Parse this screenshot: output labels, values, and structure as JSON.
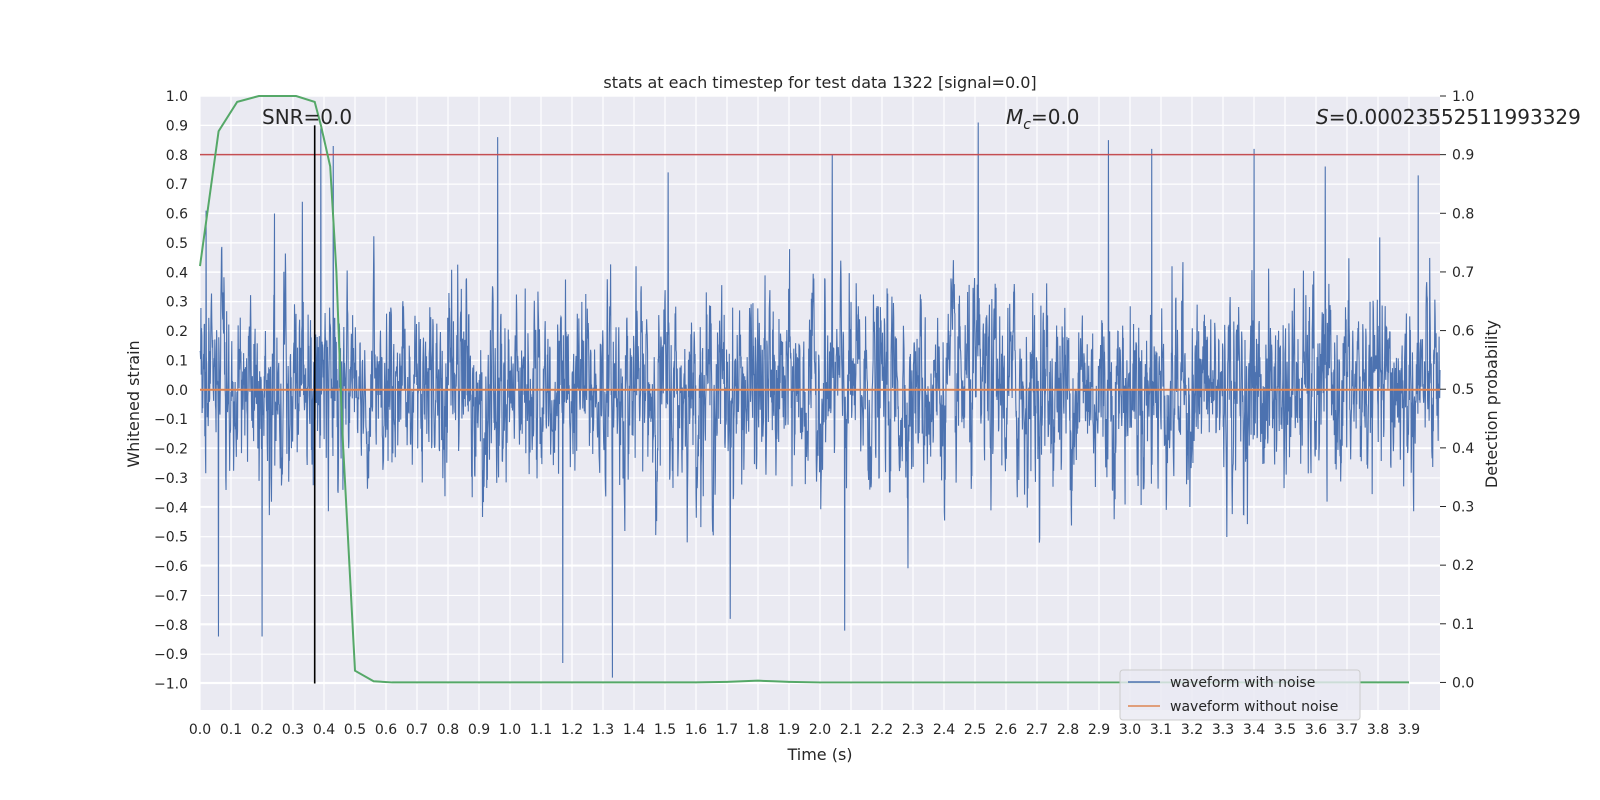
{
  "chart_data": {
    "type": "line",
    "title": "stats at each timestep for test data 1322 [signal=0.0]",
    "xlabel": "Time (s)",
    "ylabel": "Whitened strain",
    "y2label": "Detection probability",
    "xlim": [
      0.0,
      4.0
    ],
    "ylim": [
      -1.09,
      1.0
    ],
    "y2lim": [
      -0.047,
      1.0
    ],
    "xticks": [
      0.0,
      0.1,
      0.2,
      0.3,
      0.4,
      0.5,
      0.6,
      0.7,
      0.8,
      0.9,
      1.0,
      1.1,
      1.2,
      1.3,
      1.4,
      1.5,
      1.6,
      1.7,
      1.8,
      1.9,
      2.0,
      2.1,
      2.2,
      2.3,
      2.4,
      2.5,
      2.6,
      2.7,
      2.8,
      2.9,
      3.0,
      3.1,
      3.2,
      3.3,
      3.4,
      3.5,
      3.6,
      3.7,
      3.8,
      3.9
    ],
    "xtick_labels": [
      "0.0",
      "0.1",
      "0.2",
      "0.3",
      "0.4",
      "0.5",
      "0.6",
      "0.7",
      "0.8",
      "0.9",
      "1.0",
      "1.1",
      "1.2",
      "1.3",
      "1.4",
      "1.5",
      "1.6",
      "1.7",
      "1.8",
      "1.9",
      "2.0",
      "2.1",
      "2.2",
      "2.3",
      "2.4",
      "2.5",
      "2.6",
      "2.7",
      "2.8",
      "2.9",
      "3.0",
      "3.1",
      "3.2",
      "3.3",
      "3.4",
      "3.5",
      "3.6",
      "3.7",
      "3.8",
      "3.9"
    ],
    "yticks": [
      1.0,
      0.9,
      0.8,
      0.7,
      0.6,
      0.5,
      0.4,
      0.3,
      0.2,
      0.1,
      0.0,
      -0.1,
      -0.2,
      -0.3,
      -0.4,
      -0.5,
      -0.6,
      -0.7,
      -0.8,
      -0.9,
      -1.0
    ],
    "ytick_labels": [
      "1.0",
      "0.9",
      "0.8",
      "0.7",
      "0.6",
      "0.5",
      "0.4",
      "0.3",
      "0.2",
      "0.1",
      "0.0",
      "−0.1",
      "−0.2",
      "−0.3",
      "−0.4",
      "−0.5",
      "−0.6",
      "−0.7",
      "−0.8",
      "−0.9",
      "−1.0"
    ],
    "y2ticks": [
      1.0,
      0.9,
      0.8,
      0.7,
      0.6,
      0.5,
      0.4,
      0.3,
      0.2,
      0.1,
      0.0
    ],
    "y2tick_labels": [
      "1.0",
      "0.9",
      "0.8",
      "0.7",
      "0.6",
      "0.5",
      "0.4",
      "0.3",
      "0.2",
      "0.1",
      "0.0"
    ],
    "grid": true,
    "legend_position": "bottom-right",
    "annotations": {
      "snr": "SNR=0.0",
      "mc_symbol": "M",
      "mc_sub": "c",
      "mc_value": "=0.0",
      "s_symbol": "S",
      "s_value": "=0.00023552511993329"
    },
    "series": [
      {
        "name": "waveform with noise",
        "color": "#4c72b0",
        "axis": "left",
        "style": "dense noise, roughly ±0.33 baseline with spikes reaching about ±0.9",
        "samples": 4096,
        "peaks": [
          {
            "t": 0.02,
            "v": 0.61
          },
          {
            "t": 0.06,
            "v": -0.84
          },
          {
            "t": 0.2,
            "v": -0.84
          },
          {
            "t": 0.24,
            "v": 0.6
          },
          {
            "t": 0.33,
            "v": 0.64
          },
          {
            "t": 0.39,
            "v": 0.89
          },
          {
            "t": 0.43,
            "v": 0.83
          },
          {
            "t": 0.96,
            "v": 0.86
          },
          {
            "t": 1.17,
            "v": -0.93
          },
          {
            "t": 1.33,
            "v": -0.98
          },
          {
            "t": 1.51,
            "v": 0.74
          },
          {
            "t": 1.71,
            "v": -0.78
          },
          {
            "t": 2.04,
            "v": 0.8
          },
          {
            "t": 2.08,
            "v": -0.82
          },
          {
            "t": 2.51,
            "v": 0.91
          },
          {
            "t": 2.93,
            "v": 0.85
          },
          {
            "t": 3.07,
            "v": 0.82
          },
          {
            "t": 3.4,
            "v": 0.82
          },
          {
            "t": 3.63,
            "v": 0.76
          },
          {
            "t": 3.93,
            "v": 0.73
          }
        ]
      },
      {
        "name": "waveform without noise",
        "color": "#dd8452",
        "axis": "left",
        "x": [
          0.0,
          4.0
        ],
        "values": [
          0.0,
          0.0
        ]
      },
      {
        "name": "detection probability",
        "color": "#55a868",
        "axis": "right",
        "x": [
          0.0,
          0.06,
          0.12,
          0.19,
          0.25,
          0.31,
          0.37,
          0.39,
          0.42,
          0.44,
          0.46,
          0.5,
          0.56,
          0.62,
          0.8,
          1.0,
          1.6,
          1.7,
          1.75,
          1.8,
          1.85,
          1.9,
          2.0,
          3.9
        ],
        "values": [
          0.71,
          0.94,
          0.99,
          1.0,
          1.0,
          1.0,
          0.99,
          0.95,
          0.88,
          0.7,
          0.42,
          0.02,
          0.002,
          0.0,
          0.0,
          0.0,
          0.0,
          0.001,
          0.002,
          0.003,
          0.002,
          0.001,
          0.0,
          0.0
        ]
      }
    ],
    "reference_lines": [
      {
        "type": "horizontal",
        "axis": "right",
        "value": 0.9,
        "color": "#c44e52"
      },
      {
        "type": "vertical",
        "value": 0.37,
        "ymin": -1.0,
        "ymax": 0.9,
        "color": "#000000"
      }
    ]
  }
}
